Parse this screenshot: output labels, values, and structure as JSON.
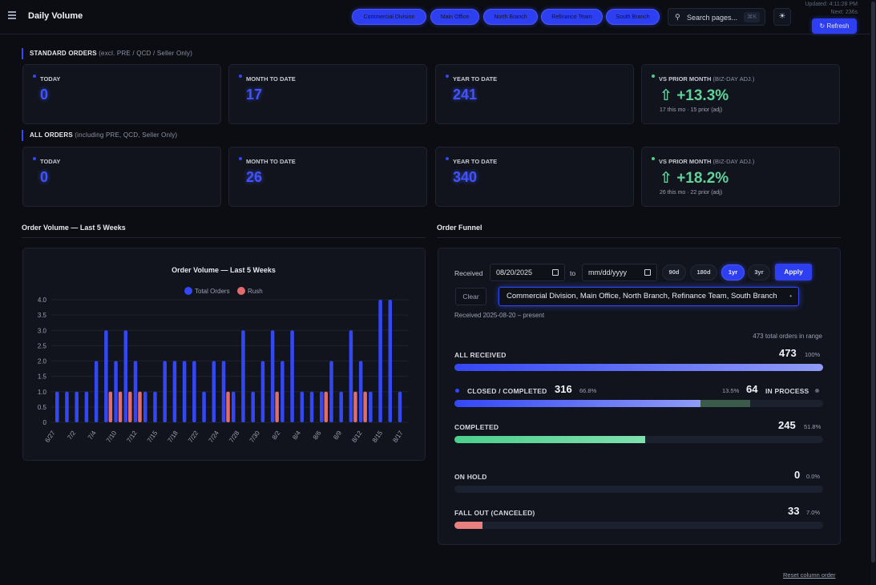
{
  "header": {
    "title": "Daily Volume",
    "divisions": [
      "Commercial Division",
      "Main Office",
      "North Branch",
      "Refinance Team",
      "South Branch"
    ],
    "search_placeholder": "Search pages...",
    "search_shortcut": "⌘K",
    "updated": "Updated: 4:11:28 PM",
    "next": "Next: 236s",
    "refresh_label": "↻ Refresh"
  },
  "standard": {
    "heading": "STANDARD ORDERS",
    "heading_sub": "(excl. PRE / QCD / Seller Only)",
    "today_label": "TODAY",
    "today": "0",
    "mtd_label": "MONTH TO DATE",
    "mtd": "17",
    "ytd_label": "YEAR TO DATE",
    "ytd": "241",
    "vs_label": "VS PRIOR MONTH",
    "vs_sub": "(BIZ-DAY ADJ.)",
    "vs_value": "⇧ +13.3%",
    "vs_foot": "17 this mo · 15 prior (adj)"
  },
  "all": {
    "heading": "ALL ORDERS",
    "heading_sub": "(including PRE, QCD, Seller Only)",
    "today_label": "TODAY",
    "today": "0",
    "mtd_label": "MONTH TO DATE",
    "mtd": "26",
    "ytd_label": "YEAR TO DATE",
    "ytd": "340",
    "vs_label": "VS PRIOR MONTH",
    "vs_sub": "(BIZ-DAY ADJ.)",
    "vs_value": "⇧ +18.2%",
    "vs_foot": "26 this mo · 22 prior (adj)"
  },
  "volume_panel_title": "Order Volume — Last 5 Weeks",
  "chart_data": {
    "type": "bar",
    "title": "Order Volume — Last 5 Weeks",
    "legend_position": "top",
    "ylim": [
      0,
      4
    ],
    "yticks": [
      "0",
      "0.5",
      "1.0",
      "1.5",
      "2.0",
      "2.5",
      "3.0",
      "3.5",
      "4.0"
    ],
    "tick_labels": [
      "6/27",
      "7/2",
      "7/4",
      "7/10",
      "7/12",
      "7/15",
      "7/18",
      "7/22",
      "7/24",
      "7/28",
      "7/30",
      "8/2",
      "8/4",
      "8/6",
      "8/9",
      "8/12",
      "8/15",
      "8/17"
    ],
    "series": [
      {
        "name": "Total Orders",
        "color": "#3447f5",
        "values": [
          1,
          1,
          1,
          1,
          2,
          3,
          2,
          3,
          2,
          1,
          1,
          2,
          2,
          2,
          2,
          1,
          2,
          2,
          1,
          3,
          1,
          2,
          3,
          2,
          3,
          1,
          1,
          1,
          2,
          1,
          3,
          2,
          1,
          4,
          4,
          1
        ]
      },
      {
        "name": "Rush",
        "color": "#e06c6c",
        "values": [
          0,
          0,
          0,
          0,
          0,
          1,
          1,
          1,
          1,
          0,
          0,
          0,
          0,
          0,
          0,
          0,
          0,
          1,
          0,
          0,
          0,
          0,
          1,
          0,
          0,
          0,
          0,
          1,
          0,
          0,
          1,
          1,
          0,
          0,
          0,
          0
        ]
      }
    ]
  },
  "funnel": {
    "title": "Order Funnel",
    "received_label": "Received",
    "from_date": "08/20/2025",
    "to_label": "to",
    "to_placeholder": "mm/dd/yyyy",
    "ranges": [
      "90d",
      "180d",
      "1yr",
      "3yr"
    ],
    "active_range": "1yr",
    "apply_label": "Apply",
    "clear_label": "Clear",
    "divisions_value": "Commercial Division, Main Office, North Branch, Refinance Team, South Branch",
    "received_range": "Received 2025-08-20 – present",
    "total_note": "473 total orders in range",
    "all_received": {
      "label": "ALL RECEIVED",
      "value": "473",
      "pct": "100%",
      "fraction": 1.0
    },
    "closed": {
      "label": "CLOSED / COMPLETED",
      "value": "316",
      "pct": "66.8%",
      "fraction": 0.668
    },
    "in_process": {
      "label": "IN PROCESS",
      "value": "64",
      "pct": "13.5%",
      "fraction": 0.135
    },
    "completed": {
      "label": "COMPLETED",
      "value": "245",
      "pct": "51.8%",
      "fraction": 0.518
    },
    "on_hold": {
      "label": "ON HOLD",
      "value": "0",
      "pct": "0.0%",
      "fraction": 0.0
    },
    "fall_out": {
      "label": "FALL OUT (CANCELED)",
      "value": "33",
      "pct": "7.0%",
      "fraction": 0.07
    },
    "reset_label": "Reset column order"
  },
  "colors": {
    "accent": "#3447f5",
    "rush": "#e06c6c",
    "green": "#5fd39a",
    "in_process": "#3a5a4a",
    "closed_light": "#8f9bf5"
  }
}
